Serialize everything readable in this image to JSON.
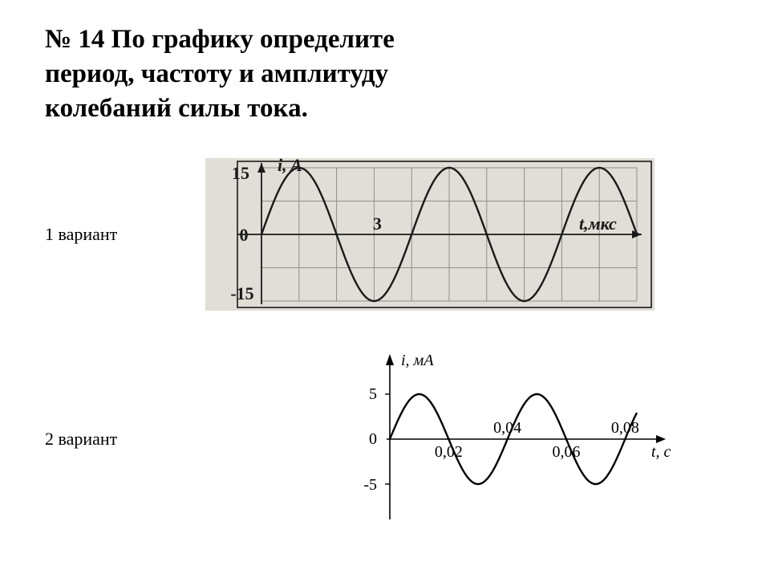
{
  "title_line1": "№ 14    По графику определите",
  "title_line2": "период, частоту и амплитуду",
  "title_line3": "колебаний силы тока.",
  "variant1_label": "1 вариант",
  "variant2_label": "2 вариант",
  "chart1": {
    "type": "line",
    "y_label": "i, A",
    "x_label": "t,мкс",
    "y_tick_top": "15",
    "y_tick_origin": "0",
    "y_tick_bottom": "-15",
    "x_tick_value": "3",
    "amplitude": 15,
    "period": 4,
    "x_grid_count": 10,
    "y_grid_count": 4,
    "colors": {
      "bg": "#e0ded6",
      "axis": "#1a1a1a",
      "grid": "#8f8d86",
      "curve": "#1a1a1a",
      "label": "#1a1a1a"
    },
    "font_size_labels": 22,
    "line_width": 2.4
  },
  "chart2": {
    "type": "line",
    "y_label": "i, мА",
    "x_label": "t, с",
    "y_ticks": [
      "5",
      "0",
      "-5"
    ],
    "x_ticks": [
      "0,02",
      "0,04",
      "0,06",
      "0,08"
    ],
    "amplitude": 5,
    "period": 0.04,
    "colors": {
      "bg": "#ffffff",
      "axis": "#000000",
      "curve": "#000000",
      "label": "#000000"
    },
    "font_size_labels": 20,
    "line_width": 2.4
  }
}
